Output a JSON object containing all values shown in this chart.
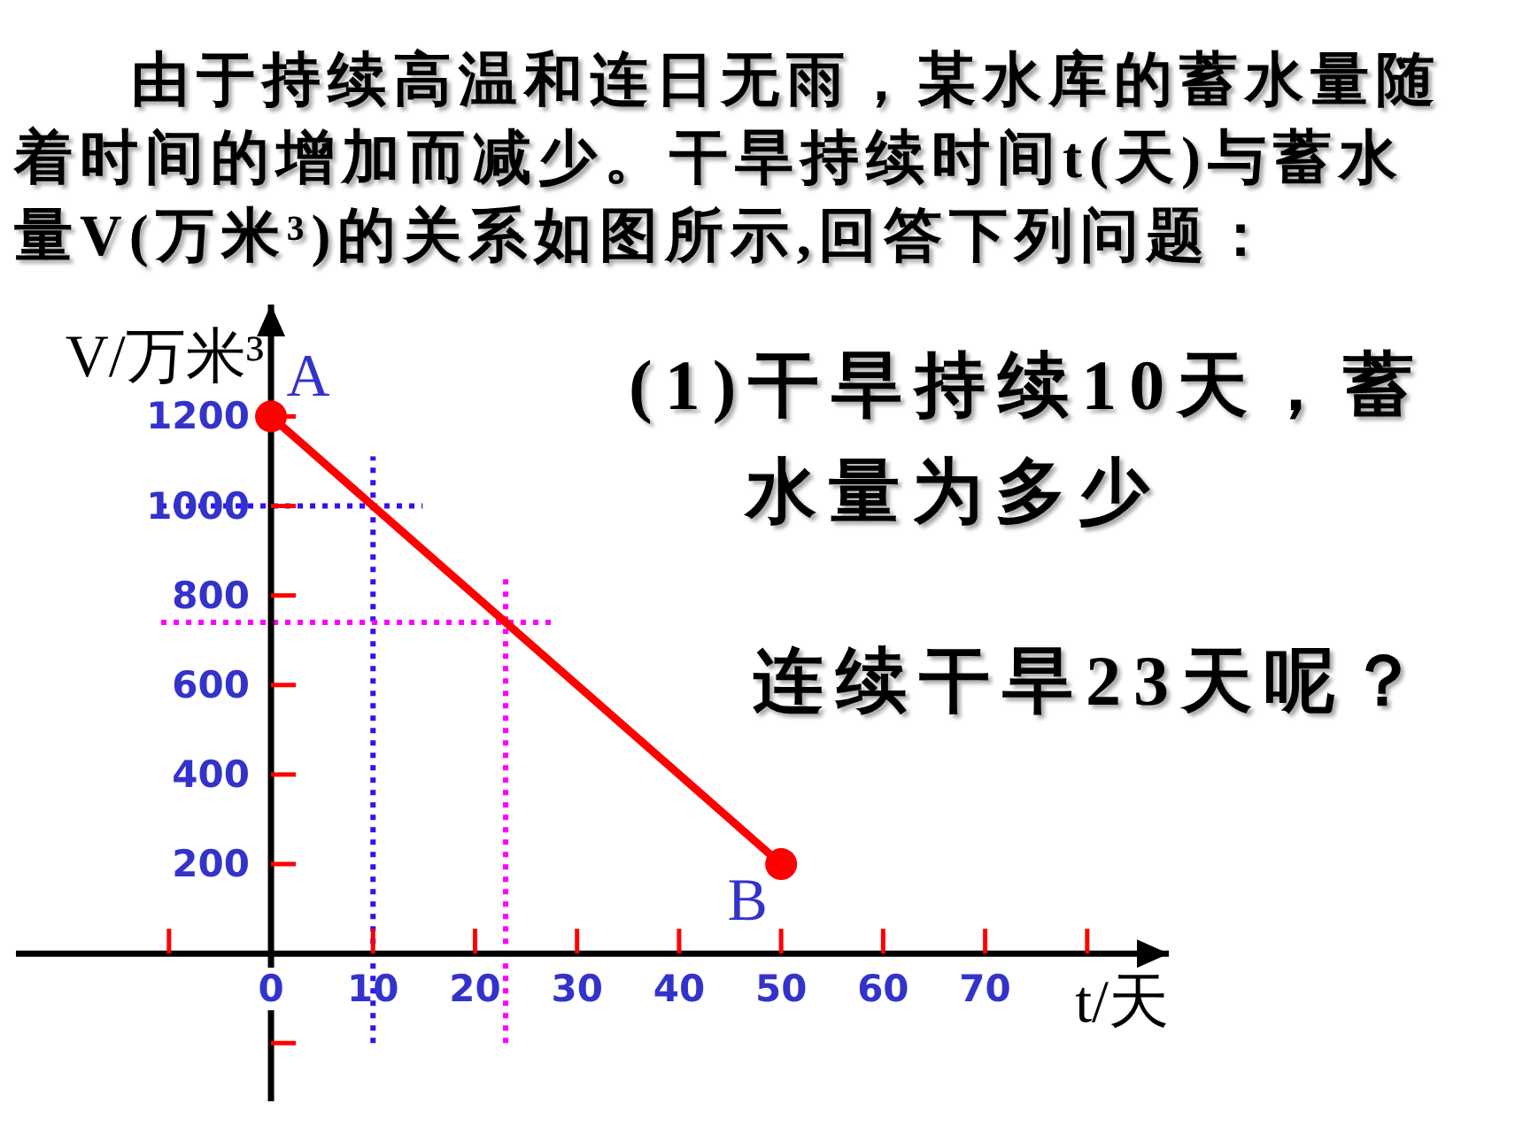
{
  "chart_data": {
    "type": "line",
    "title": "由于持续高温和连日无雨，某水库的蓄水量随着时间的增加而减少。干旱持续时间t(天)与蓄水量V(万米³)的关系如图所示,回答下列问题：",
    "xlabel": "t/天",
    "ylabel": "V/万米³",
    "series": [
      {
        "color": "#ff0000",
        "x": [
          0,
          50
        ],
        "values": [
          1200,
          200
        ]
      }
    ],
    "marker": "circle",
    "xlim": [
      -25,
      88
    ],
    "ylim": [
      -330,
      1450
    ],
    "xticks": [
      {
        "value": -10,
        "label": null
      },
      0,
      10,
      20,
      30,
      40,
      50,
      60,
      70,
      {
        "value": 80,
        "label": null
      }
    ],
    "yticks": [
      {
        "value": -200,
        "label": null
      },
      200,
      400,
      600,
      800,
      1000,
      1200
    ],
    "ref_lines": [
      {
        "axis": "x",
        "value": 10,
        "color": "#3311ee",
        "line_style": "dotted"
      },
      {
        "axis": "y",
        "value": 1000,
        "color": "#3311ee",
        "line_style": "dotted"
      },
      {
        "axis": "x",
        "value": 23,
        "color": "#ff00ff",
        "line_style": "dotted"
      },
      {
        "axis": "y",
        "value": 740,
        "color": "#ff00ff",
        "line_style": "dotted"
      }
    ],
    "annotations": [
      {
        "text": "A",
        "x": 0,
        "y": 1200
      },
      {
        "text": "B",
        "x": 50,
        "y": 200
      },
      "(1)干旱持续10天，蓄水量为多少",
      "连续干旱23天呢？"
    ]
  }
}
